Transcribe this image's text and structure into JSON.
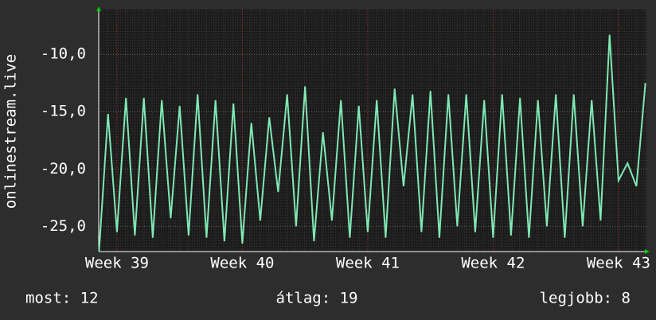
{
  "chart_data": {
    "type": "line",
    "y_label": "onlinestream.live",
    "x": [
      -1,
      -0.5,
      0,
      0.5,
      1,
      1.5,
      2,
      2.5,
      3,
      3.5,
      4,
      4.5,
      5,
      5.5,
      6,
      6.5,
      7,
      7.5,
      8,
      8.5,
      9,
      9.5,
      10,
      10.5,
      11,
      11.5,
      12,
      12.5,
      13,
      13.5,
      14,
      14.5,
      15,
      15.5,
      16,
      16.5,
      17,
      17.5,
      18,
      18.5,
      19,
      19.5,
      20,
      20.5,
      21,
      21.5,
      22,
      22.5,
      23,
      23.5,
      24,
      24.5,
      25,
      25.5,
      26,
      26.5,
      27,
      27.5,
      28,
      28.5,
      29,
      29.5
    ],
    "series": [
      {
        "color": "#7fe8b4",
        "values": [
          -27.2,
          -15.2,
          -25.5,
          -13.8,
          -25.8,
          -13.8,
          -26,
          -14,
          -24.3,
          -14.5,
          -25.8,
          -13.5,
          -26,
          -14,
          -26.3,
          -14.3,
          -26.5,
          -16,
          -24.5,
          -15.5,
          -22,
          -13.5,
          -25,
          -12.8,
          -26.3,
          -16.8,
          -24.5,
          -14,
          -26,
          -14.5,
          -25.5,
          -14,
          -26,
          -13,
          -21.5,
          -13.5,
          -25.5,
          -13.2,
          -26,
          -13.5,
          -25,
          -13.5,
          -25.5,
          -14,
          -26,
          -13.5,
          -25.8,
          -13.8,
          -26,
          -14,
          -25,
          -13.5,
          -26,
          -13.5,
          -25,
          -14,
          -24.5,
          -8.3,
          -21,
          -19.5,
          -21.5,
          -12.5
        ]
      }
    ],
    "xlim": [
      -1.02,
      29.56
    ],
    "xticks": [
      {
        "value": 0,
        "label": "Week 39"
      },
      {
        "value": 7,
        "label": "Week 40"
      },
      {
        "value": 14,
        "label": "Week 41"
      },
      {
        "value": 21,
        "label": "Week 42"
      },
      {
        "value": 28,
        "label": "Week 43"
      }
    ],
    "ylim": [
      -27.2,
      -6.1
    ],
    "yticks": [
      {
        "value": -10,
        "label": "-10,0"
      },
      {
        "value": -15,
        "label": "-15,0"
      },
      {
        "value": -20,
        "label": "-20,0"
      },
      {
        "value": -25,
        "label": "-25,0"
      }
    ],
    "grid": true,
    "footer": [
      "most: 12",
      "átlag: 19",
      "legjobb: 8"
    ]
  }
}
